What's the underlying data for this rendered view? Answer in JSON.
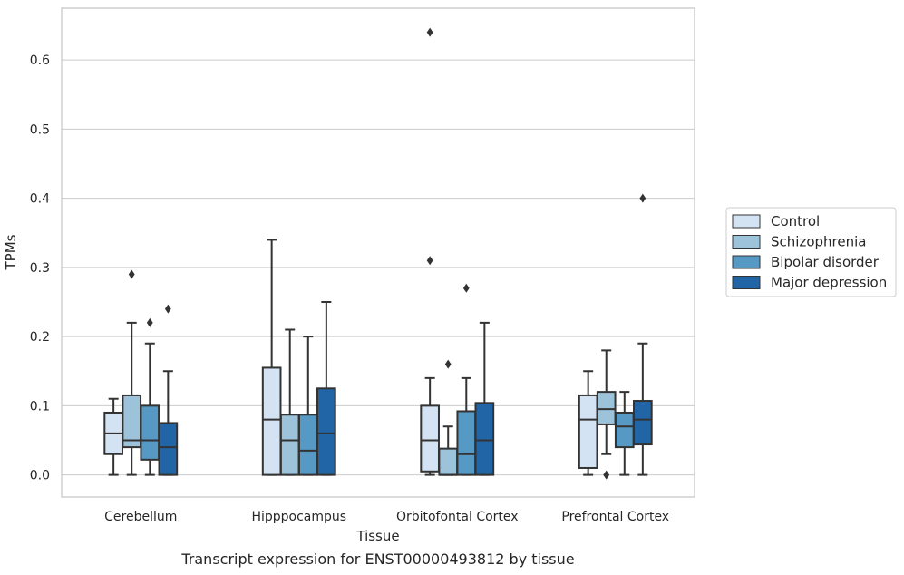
{
  "chart_data": {
    "type": "box",
    "title": "",
    "caption": "Transcript expression for ENST00000493812 by tissue",
    "xlabel": "Tissue",
    "ylabel": "TPMs",
    "ylim": [
      -0.032,
      0.675
    ],
    "yticks": [
      0.0,
      0.1,
      0.2,
      0.3,
      0.4,
      0.5,
      0.6
    ],
    "ytick_labels": [
      "0.0",
      "0.1",
      "0.2",
      "0.3",
      "0.4",
      "0.5",
      "0.6"
    ],
    "grid": true,
    "legend_position": "right",
    "categories": [
      "Cerebellum",
      "Hipppocampus",
      "Orbitofontal Cortex",
      "Prefrontal Cortex"
    ],
    "series": [
      {
        "name": "Control",
        "color": "#d4e3f3",
        "boxes": [
          {
            "whislo": 0.0,
            "q1": 0.03,
            "med": 0.06,
            "q3": 0.09,
            "whishi": 0.11,
            "fliers": []
          },
          {
            "whislo": 0.0,
            "q1": 0.0,
            "med": 0.08,
            "q3": 0.155,
            "whishi": 0.34,
            "fliers": []
          },
          {
            "whislo": 0.0,
            "q1": 0.005,
            "med": 0.05,
            "q3": 0.1,
            "whishi": 0.14,
            "fliers": [
              0.31,
              0.64
            ]
          },
          {
            "whislo": 0.0,
            "q1": 0.01,
            "med": 0.08,
            "q3": 0.115,
            "whishi": 0.15,
            "fliers": []
          }
        ]
      },
      {
        "name": "Schizophrenia",
        "color": "#9cc3da",
        "boxes": [
          {
            "whislo": 0.0,
            "q1": 0.04,
            "med": 0.05,
            "q3": 0.115,
            "whishi": 0.22,
            "fliers": [
              0.29
            ]
          },
          {
            "whislo": 0.0,
            "q1": 0.0,
            "med": 0.05,
            "q3": 0.087,
            "whishi": 0.21,
            "fliers": []
          },
          {
            "whislo": 0.0,
            "q1": 0.0,
            "med": 0.0,
            "q3": 0.038,
            "whishi": 0.07,
            "fliers": [
              0.16
            ]
          },
          {
            "whislo": 0.03,
            "q1": 0.073,
            "med": 0.095,
            "q3": 0.12,
            "whishi": 0.18,
            "fliers": [
              0.0
            ]
          }
        ]
      },
      {
        "name": "Bipolar disorder",
        "color": "#5599c4",
        "boxes": [
          {
            "whislo": 0.0,
            "q1": 0.022,
            "med": 0.05,
            "q3": 0.1,
            "whishi": 0.19,
            "fliers": [
              0.22
            ]
          },
          {
            "whislo": 0.0,
            "q1": 0.0,
            "med": 0.035,
            "q3": 0.087,
            "whishi": 0.2,
            "fliers": []
          },
          {
            "whislo": 0.0,
            "q1": 0.0,
            "med": 0.03,
            "q3": 0.092,
            "whishi": 0.14,
            "fliers": [
              0.27
            ]
          },
          {
            "whislo": 0.0,
            "q1": 0.04,
            "med": 0.07,
            "q3": 0.09,
            "whishi": 0.12,
            "fliers": []
          }
        ]
      },
      {
        "name": "Major depression",
        "color": "#2265a6",
        "boxes": [
          {
            "whislo": 0.0,
            "q1": 0.0,
            "med": 0.04,
            "q3": 0.075,
            "whishi": 0.15,
            "fliers": [
              0.24
            ]
          },
          {
            "whislo": 0.0,
            "q1": 0.0,
            "med": 0.06,
            "q3": 0.125,
            "whishi": 0.25,
            "fliers": []
          },
          {
            "whislo": 0.0,
            "q1": 0.0,
            "med": 0.05,
            "q3": 0.104,
            "whishi": 0.22,
            "fliers": []
          },
          {
            "whislo": 0.0,
            "q1": 0.044,
            "med": 0.08,
            "q3": 0.107,
            "whishi": 0.19,
            "fliers": [
              0.4
            ]
          }
        ]
      }
    ]
  }
}
